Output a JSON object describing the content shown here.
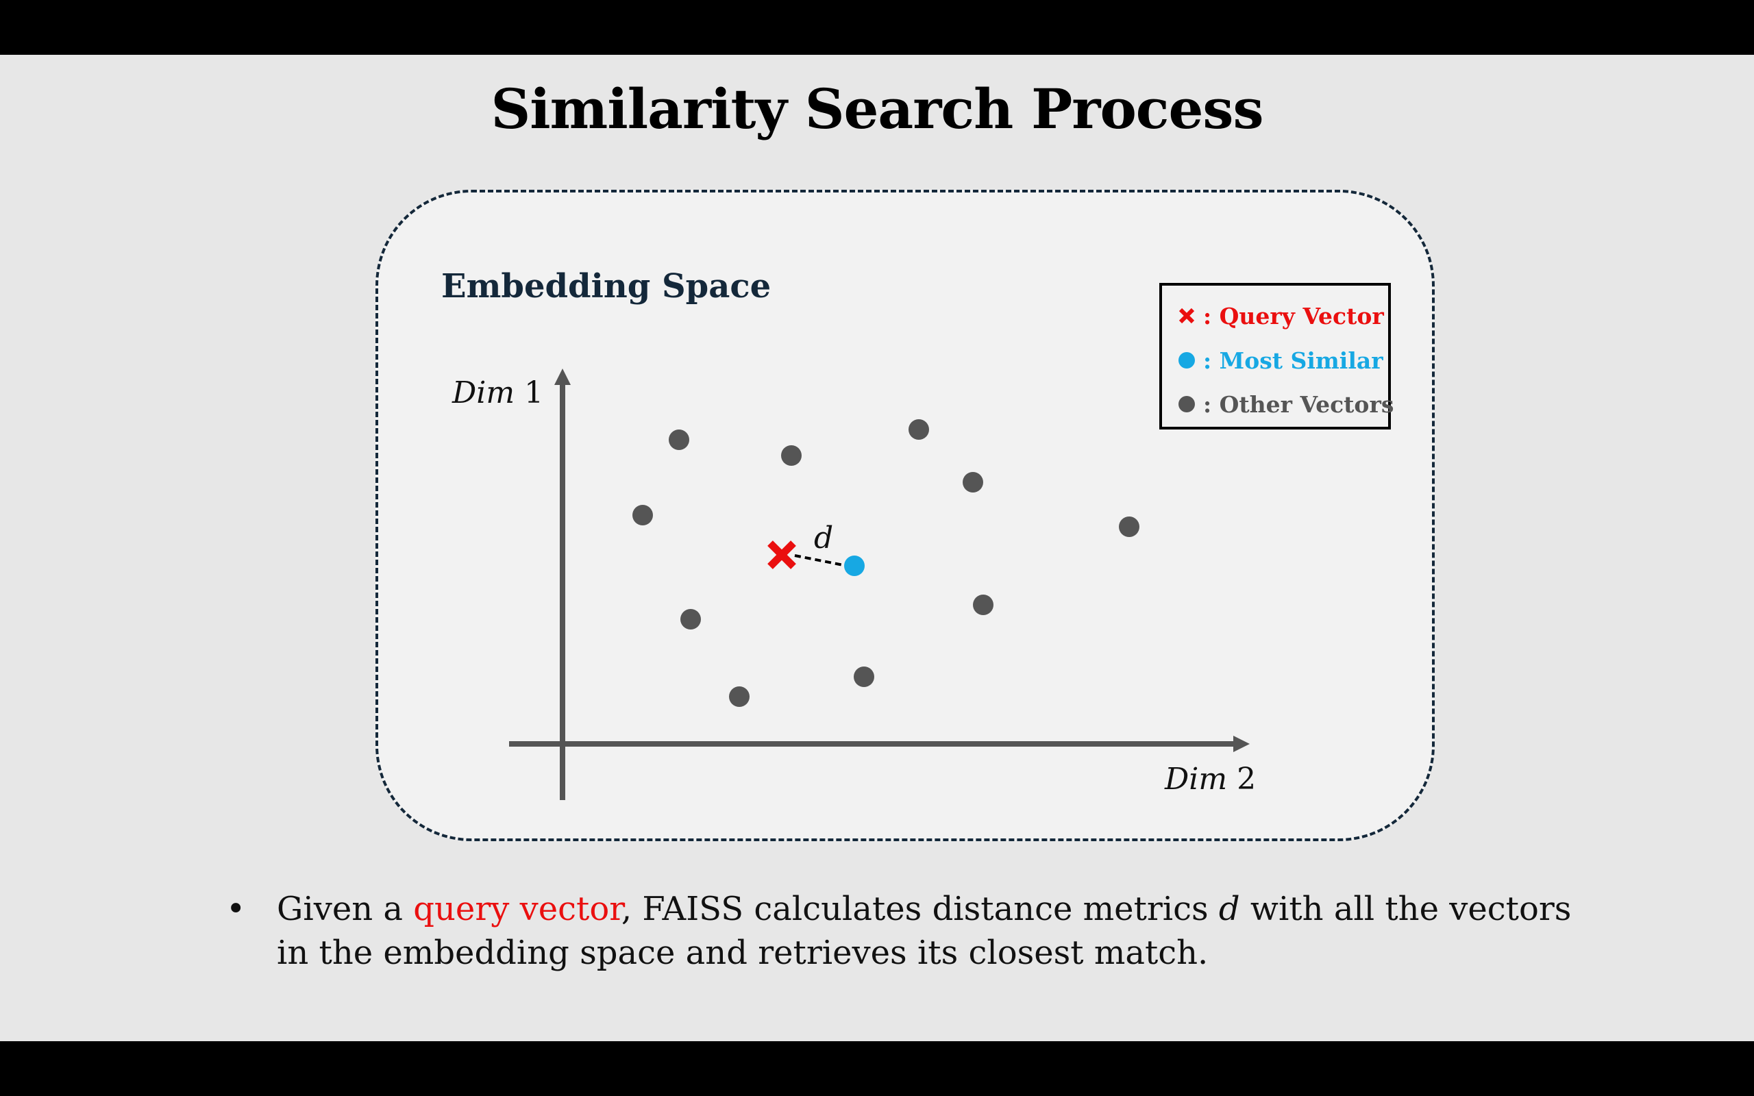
{
  "slide": {
    "title": "Similarity Search Process",
    "panel_label": "Embedding Space"
  },
  "legend": {
    "query": ": Query Vector",
    "most_similar": ": Most Similar",
    "other": ": Other Vectors"
  },
  "axes": {
    "y_label_italic": "Dim",
    "y_label_num": " 1",
    "x_label_italic": "Dim",
    "x_label_num": " 2",
    "distance_label": "d"
  },
  "bullet": {
    "dot": "•",
    "pre": "Given a ",
    "highlight": "query vector",
    "mid": ", FAISS calculates distance metrics ",
    "d": "d",
    "post": " with all the vectors in the embedding space and retrieves its closest match."
  },
  "colors": {
    "query": "#ea0f0f",
    "most_similar": "#17a8e3",
    "other": "#555555",
    "axis": "#555555",
    "border": "#14283a"
  }
}
